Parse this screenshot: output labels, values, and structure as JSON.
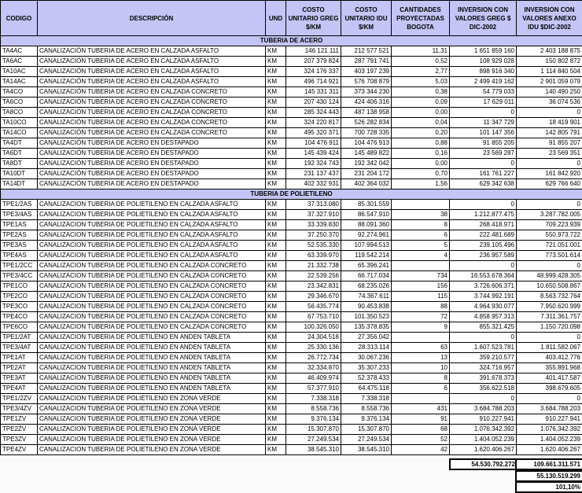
{
  "headers": [
    "CODIGO",
    "DESCRIPCIÓN",
    "UND",
    "COSTO UNITARIO GREG $/KM",
    "COSTO UNITARIO IDU $/KM",
    "CANTIDADES PROYECTADAS BOGOTA",
    "INVERSION CON VALORES GREG $ DIC-2002",
    "INVERSION CON VALORES ANEXO IDU $DIC-2002"
  ],
  "sections": [
    {
      "title": "TUBERIA DE ACERO",
      "rows": [
        [
          "TA4AC",
          "CANALIZACIÓN TUBERIA DE ACERO EN CALZADA ASFALTO",
          "KM",
          "146 121 111",
          "212 577 521",
          "11,31",
          "1 651 859 160",
          "2 403 188 875"
        ],
        [
          "TA6AC",
          "CANALIZACIÓN TUBERIA DE ACERO EN CALZADA ASFALTO",
          "KM",
          "207 379 824",
          "287 791 741",
          "0,52",
          "108 929 028",
          "150 802 872"
        ],
        [
          "TA10AC",
          "CANALIZACIÓN TUBERIA DE ACERO EN CALZADA ASFALTO",
          "KM",
          "324 176 337",
          "403 197 239",
          "2,77",
          "898 916 340",
          "1 114 840 504"
        ],
        [
          "TA14AC",
          "CANALIZACIÓN TUBERIA DE ACERO EN CALZADA ASFALTO",
          "KM",
          "496 714 921",
          "576 708 879",
          "5,03",
          "2 499 419 162",
          "2 901 059 079"
        ],
        [
          "TA4CO",
          "CANALIZACIÓN TUBERIA DE ACERO EN CALZADA CONCRETO",
          "KM",
          "145 331 311",
          "373 344 230",
          "0,38",
          "54 779 033",
          "140 490 250"
        ],
        [
          "TA6CO",
          "CANALIZACIÓN TUBERIA DE ACERO EN CALZADA CONCRETO",
          "KM",
          "207 430 124",
          "424 406 316",
          "0,09",
          "17 629 011",
          "36 074 536"
        ],
        [
          "TA8CO",
          "CANALIZACIÓN TUBERIA DE ACERO EN CALZADA CONCRETO",
          "KM",
          "285 324 443",
          "487 138 958",
          "0,00",
          "0",
          "0"
        ],
        [
          "TA10CO",
          "CANALIZACIÓN TUBERIA DE ACERO EN CALZADA CONCRETO",
          "KM",
          "324 220 817",
          "526 282 834",
          "0,04",
          "11 347 729",
          "18 419 901"
        ],
        [
          "TA14CO",
          "CANALIZACIÓN TUBERIA DE ACERO EN CALZADA CONCRETO",
          "KM",
          "495 320 371",
          "700 728 335",
          "0,20",
          "101 147 356",
          "142 805 791"
        ],
        [
          "TA4DT",
          "CANALIZACIÓN TUBERIA DE ACERO EN DESTAPADO",
          "KM",
          "104 476 911",
          "104 476 913",
          "0,88",
          "91 855 205",
          "91 855 207"
        ],
        [
          "TA6DT",
          "CANALIZACIÓN TUBERIA DE ACERO EN DESTAPADO",
          "KM",
          "145 439 424",
          "145 489 822",
          "0,16",
          "23 569 287",
          "23 569 351"
        ],
        [
          "TA8DT",
          "CANALIZACIÓN TUBERIA DE ACERO EN DESTAPADO",
          "KM",
          "192 324 743",
          "192 342 042",
          "0,00",
          "0",
          "0"
        ],
        [
          "TA10DT",
          "CANALIZACIÓN TUBERIA DE ACERO EN DESTAPADO",
          "KM",
          "231 137 437",
          "231 204 172",
          "0,70",
          "161 761 227",
          "161 842 920"
        ],
        [
          "TA14DT",
          "CANALIZACIÓN TUBERIA DE ACERO EN DESTAPADO",
          "KM",
          "402 332 931",
          "402 364 032",
          "1,56",
          "629 342 638",
          "629 766 640"
        ]
      ]
    },
    {
      "title": "TUBERIA DE POLIETILENO",
      "rows": [
        [
          "TPE1/2AS",
          "CANALIZACION TUBERIA DE POLIETILENO EN CALZADA ASFALTO",
          "KM",
          "37.313.080",
          "85.301.559",
          "",
          "0",
          "0"
        ],
        [
          "TPE3/4AS",
          "CANALIZACION TUBERIA DE POLIETILENO EN CALZADA ASFALTO",
          "KM",
          "37.327.910",
          "86.547.910",
          "38",
          "1.212.877.475",
          "3.287.782.005"
        ],
        [
          "TPE1AS",
          "CANALIZACION TUBERIA DE POLIETILENO EN CALZADA ASFALTO",
          "KM",
          "33.339.830",
          "88.091.360",
          "8",
          "268.418.971",
          "709.223.939"
        ],
        [
          "TPE2AS",
          "CANALIZACION TUBERIA DE POLIETILENO EN CALZADA ASFALTO",
          "KM",
          "37.250.370",
          "92.274.961",
          "6",
          "222.481.689",
          "550.973.722"
        ],
        [
          "TPE3AS",
          "CANALIZACION TUBERIA DE POLIETILENO EN CALZADA ASFALTO",
          "KM",
          "52.535.330",
          "107.994.513",
          "5",
          "239.105.496",
          "721.051.001"
        ],
        [
          "TPE4AS",
          "CANALIZACION TUBERIA DE POLIETILENO EN CALZADA ASFALTO",
          "KM",
          "63.339.970",
          "119.542.214",
          "4",
          "236.957.589",
          "773.501.614"
        ],
        [
          "TPE1/2CC",
          "CANALIZACION TUBERIA DE POLIETILENO EN CALZADA CONCRETO",
          "KM",
          "21.332.738",
          "65.396.241",
          "",
          "0",
          "0"
        ],
        [
          "TPE3/4CC",
          "CANALIZACION TUBERIA DE POLIETILENO EN CALZADA CONCRETO",
          "KM",
          "22.539.256",
          "66.717.034",
          "734",
          "16.553.678.364",
          "48.999.428.305"
        ],
        [
          "TPE1CO",
          "CANALIZACION TUBERIA DE POLIETILENO EN CALZADA CONCRETO",
          "KM",
          "23.342.831",
          "68.235.026",
          "156",
          "3.726.606.371",
          "10.650.508.867"
        ],
        [
          "TPE2CO",
          "CANALIZACION TUBERIA DE POLIETILENO EN CALZADA CONCRETO",
          "KM",
          "29.346.670",
          "74.367.611",
          "115",
          "3.744.992.191",
          "8.563.732.764"
        ],
        [
          "TPE3CO",
          "CANALIZACION TUBERIA DE POLIETILENO EN CALZADA CONCRETO",
          "KM",
          "56.435.774",
          "90.453.838",
          "88",
          "4.964.930.077",
          "7.950.620.999"
        ],
        [
          "TPE4CO",
          "CANALIZACION TUBERIA DE POLIETILENO EN CALZADA CONCRETO",
          "KM",
          "67.753.710",
          "101.350.523",
          "72",
          "4.858.957.313",
          "7.311.361.757"
        ],
        [
          "TPE6CO",
          "CANALIZACION TUBERIA DE POLIETILENO EN CALZADA CONCRETO",
          "KM",
          "100.326.050",
          "135.378.835",
          "9",
          "855.321.425",
          "1.150.720.098"
        ],
        [
          "TPE1/2AT",
          "CANALIZACION TUBERIA DE POLIETILENO EN ANDEN TABLETA",
          "KM",
          "24.304.518",
          "27.356.042",
          "",
          "0",
          "0"
        ],
        [
          "TPE3/4AT",
          "CANALIZACION TUBERIA DE POLIETILENO EN ANDEN TABLETA",
          "KM",
          "25.330.136",
          "28.313.114",
          "63",
          "1.607.523.781",
          "1.811.582.067"
        ],
        [
          "TPE1AT",
          "CANALIZACION TUBERIA DE POLIETILENO EN ANDEN TABLETA",
          "KM",
          "26.772.734",
          "30.067.236",
          "13",
          "359.210.577",
          "403.412.776"
        ],
        [
          "TPE2AT",
          "CANALIZACION TUBERIA DE POLIETILENO EN ANDEN TABLETA",
          "KM",
          "32.334.870",
          "35.307.233",
          "10",
          "324.716.957",
          "355.891.968"
        ],
        [
          "TPE3AT",
          "CANALIZACION TUBERIA DE POLIETILENO EN ANDEN TABLETA",
          "KM",
          "46.409.974",
          "52.378.433",
          "8",
          "391.678.373",
          "401.417.587"
        ],
        [
          "TPE4AT",
          "CANALIZACION TUBERIA DE POLIETILENO EN ANDEN TABLETA",
          "KM",
          "57.377.910",
          "64.475.118",
          "6",
          "356.622.518",
          "398.679.605"
        ],
        [
          "TPE1/2ZV",
          "CANALIZACION TUBERIA DE POLIETILENO EN ZONA VERDE",
          "KM",
          "7.338.318",
          "7.338.318",
          "",
          "0",
          "0"
        ],
        [
          "TPE3/4ZV",
          "CANALIZACION TUBERIA DE POLIETILENO EN ZONA VERDE",
          "KM",
          "8.558.736",
          "8.558.736",
          "431",
          "3.684.788.203",
          "3.684.788.203"
        ],
        [
          "TPE1ZV",
          "CANALIZACION TUBERIA DE POLIETILENO EN ZONA VERDE",
          "KM",
          "9.376.134",
          "9.376.134",
          "91",
          "910.227.941",
          "910.227.941"
        ],
        [
          "TPE2ZV",
          "CANALIZACION TUBERIA DE POLIETILENO EN ZONA VERDE",
          "KM",
          "15.307.870",
          "15.307.870",
          "68",
          "1.076.342.392",
          "1.076.342.392"
        ],
        [
          "TPE3ZV",
          "CANALIZACION TUBERIA DE POLIETILENO EN ZONA VERDE",
          "KM",
          "27.249.534",
          "27.249.534",
          "52",
          "1.404.052.239",
          "1.404.052.239"
        ],
        [
          "TPE4ZV",
          "CANALIZACION TUBERIA DE POLIETILENO EN ZONA VERDE",
          "KM",
          "38.545.310",
          "38.545.310",
          "42",
          "1.620.406.267",
          "1.620.406.267"
        ]
      ]
    }
  ],
  "totals": {
    "total_greg": "54.530.792.272",
    "total_idu": "109.661.311.571",
    "difference": "55.130.519.299",
    "percentage": "101,10%"
  }
}
